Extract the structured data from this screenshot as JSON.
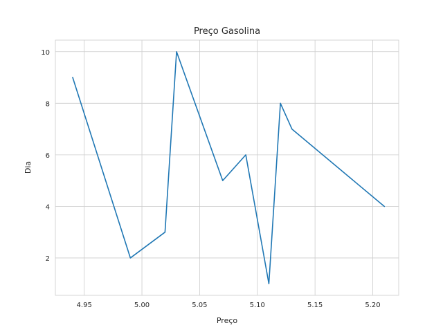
{
  "chart_data": {
    "type": "line",
    "title": "Preço Gasolina",
    "xlabel": "Preço",
    "ylabel": "Dia",
    "xlim": [
      4.925,
      5.2225
    ],
    "ylim": [
      0.55,
      10.45
    ],
    "grid": true,
    "xticks": [
      4.95,
      5.0,
      5.05,
      5.1,
      5.15,
      5.2
    ],
    "xtick_labels": [
      "4.95",
      "5.00",
      "5.05",
      "5.10",
      "5.15",
      "5.20"
    ],
    "yticks": [
      2,
      4,
      6,
      8,
      10
    ],
    "ytick_labels": [
      "2",
      "4",
      "6",
      "8",
      "10"
    ],
    "series": [
      {
        "color": "#1f77b4",
        "x": [
          4.94,
          4.99,
          5.02,
          5.03,
          5.07,
          5.09,
          5.11,
          5.12,
          5.13,
          5.21
        ],
        "y": [
          9,
          2,
          3,
          10,
          5,
          6,
          1,
          8,
          7,
          4
        ]
      }
    ]
  }
}
